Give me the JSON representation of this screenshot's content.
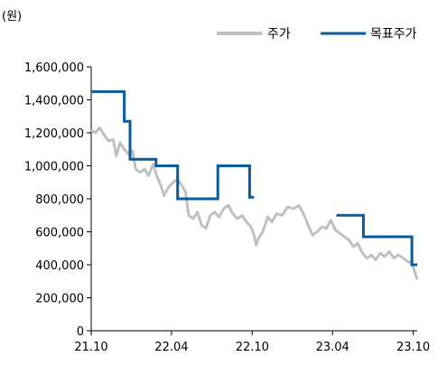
{
  "chart_data": {
    "type": "line",
    "unit_label": "(원)",
    "x_ticks": [
      "21.10",
      "22.04",
      "22.10",
      "23.04",
      "23.10"
    ],
    "ylim": [
      0,
      1600000
    ],
    "y_ticks": [
      "0",
      "200,000",
      "400,000",
      "600,000",
      "800,000",
      "1,000,000",
      "1,200,000",
      "1,400,000",
      "1,600,000"
    ],
    "y_tick_values": [
      0,
      200000,
      400000,
      600000,
      800000,
      1000000,
      1200000,
      1400000,
      1600000
    ],
    "grid": false,
    "legend_position": "top-right",
    "colors": {
      "price": "#c0c0c0",
      "target": "#0a5a9e"
    },
    "series": [
      {
        "name": "주가",
        "key": "price",
        "points": [
          [
            "2021-10-01",
            1220000
          ],
          [
            "2021-10-10",
            1200000
          ],
          [
            "2021-10-20",
            1230000
          ],
          [
            "2021-11-01",
            1180000
          ],
          [
            "2021-11-10",
            1150000
          ],
          [
            "2021-11-20",
            1160000
          ],
          [
            "2021-11-27",
            1060000
          ],
          [
            "2021-12-05",
            1140000
          ],
          [
            "2021-12-15",
            1100000
          ],
          [
            "2021-12-25",
            1070000
          ],
          [
            "2022-01-03",
            1090000
          ],
          [
            "2022-01-10",
            980000
          ],
          [
            "2022-01-20",
            960000
          ],
          [
            "2022-01-30",
            980000
          ],
          [
            "2022-02-08",
            940000
          ],
          [
            "2022-02-18",
            1010000
          ],
          [
            "2022-02-28",
            930000
          ],
          [
            "2022-03-08",
            880000
          ],
          [
            "2022-03-15",
            820000
          ],
          [
            "2022-03-25",
            870000
          ],
          [
            "2022-04-05",
            900000
          ],
          [
            "2022-04-15",
            920000
          ],
          [
            "2022-04-25",
            880000
          ],
          [
            "2022-05-03",
            840000
          ],
          [
            "2022-05-10",
            700000
          ],
          [
            "2022-05-20",
            680000
          ],
          [
            "2022-05-30",
            720000
          ],
          [
            "2022-06-08",
            640000
          ],
          [
            "2022-06-18",
            620000
          ],
          [
            "2022-06-28",
            700000
          ],
          [
            "2022-07-08",
            720000
          ],
          [
            "2022-07-18",
            690000
          ],
          [
            "2022-07-28",
            740000
          ],
          [
            "2022-08-08",
            760000
          ],
          [
            "2022-08-18",
            710000
          ],
          [
            "2022-08-28",
            680000
          ],
          [
            "2022-09-08",
            700000
          ],
          [
            "2022-09-18",
            660000
          ],
          [
            "2022-09-28",
            630000
          ],
          [
            "2022-10-05",
            580000
          ],
          [
            "2022-10-10",
            520000
          ],
          [
            "2022-10-15",
            560000
          ],
          [
            "2022-10-25",
            600000
          ],
          [
            "2022-11-05",
            690000
          ],
          [
            "2022-11-15",
            660000
          ],
          [
            "2022-11-25",
            710000
          ],
          [
            "2022-12-08",
            700000
          ],
          [
            "2022-12-20",
            750000
          ],
          [
            "2023-01-03",
            740000
          ],
          [
            "2023-01-15",
            760000
          ],
          [
            "2023-01-25",
            710000
          ],
          [
            "2023-02-05",
            640000
          ],
          [
            "2023-02-15",
            580000
          ],
          [
            "2023-02-25",
            600000
          ],
          [
            "2023-03-08",
            630000
          ],
          [
            "2023-03-18",
            620000
          ],
          [
            "2023-03-28",
            670000
          ],
          [
            "2023-04-08",
            610000
          ],
          [
            "2023-04-18",
            590000
          ],
          [
            "2023-04-28",
            570000
          ],
          [
            "2023-05-08",
            550000
          ],
          [
            "2023-05-18",
            510000
          ],
          [
            "2023-05-28",
            530000
          ],
          [
            "2023-06-08",
            470000
          ],
          [
            "2023-06-18",
            440000
          ],
          [
            "2023-06-28",
            460000
          ],
          [
            "2023-07-08",
            430000
          ],
          [
            "2023-07-18",
            470000
          ],
          [
            "2023-07-28",
            450000
          ],
          [
            "2023-08-08",
            480000
          ],
          [
            "2023-08-18",
            440000
          ],
          [
            "2023-08-28",
            460000
          ],
          [
            "2023-09-08",
            440000
          ],
          [
            "2023-09-18",
            420000
          ],
          [
            "2023-09-28",
            410000
          ],
          [
            "2023-10-05",
            350000
          ],
          [
            "2023-10-10",
            310000
          ]
        ]
      },
      {
        "name": "목표주가",
        "key": "target",
        "step_segments": [
          [
            [
              "2021-10-01",
              1450000
            ],
            [
              "2021-12-15",
              1450000
            ],
            [
              "2021-12-15",
              1270000
            ],
            [
              "2021-12-28",
              1270000
            ],
            [
              "2021-12-28",
              1040000
            ],
            [
              "2022-02-25",
              1040000
            ],
            [
              "2022-02-25",
              1000000
            ],
            [
              "2022-04-15",
              1000000
            ],
            [
              "2022-04-15",
              800000
            ],
            [
              "2022-07-15",
              800000
            ],
            [
              "2022-07-15",
              1000000
            ],
            [
              "2022-09-25",
              1000000
            ],
            [
              "2022-09-25",
              810000
            ],
            [
              "2022-10-05",
              810000
            ]
          ],
          [
            [
              "2023-04-10",
              700000
            ],
            [
              "2023-06-10",
              700000
            ],
            [
              "2023-06-10",
              570000
            ],
            [
              "2023-09-28",
              570000
            ],
            [
              "2023-09-28",
              400000
            ],
            [
              "2023-10-10",
              400000
            ]
          ]
        ]
      }
    ]
  }
}
